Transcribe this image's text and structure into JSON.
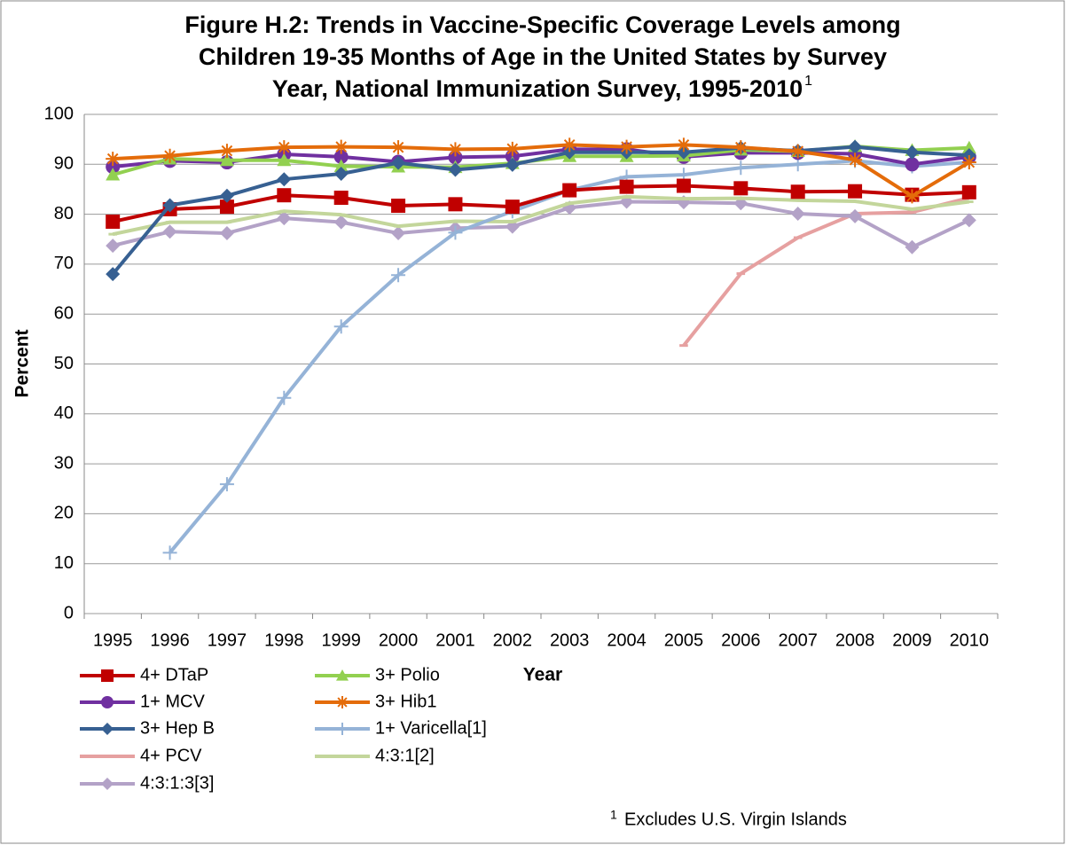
{
  "chart_data": {
    "type": "line",
    "title_lines": [
      "Figure H.2: Trends in Vaccine-Specific Coverage Levels among",
      "Children 19-35 Months of Age in the United States by Survey",
      "Year, National Immunization Survey, 1995-2010"
    ],
    "title_superscript": "1",
    "x_label": "Year",
    "y_label": "Percent",
    "footnote_marker": "1",
    "footnote": "Excludes U.S. Virgin Islands",
    "categories": [
      "1995",
      "1996",
      "1997",
      "1998",
      "1999",
      "2000",
      "2001",
      "2002",
      "2003",
      "2004",
      "2005",
      "2006",
      "2007",
      "2008",
      "2009",
      "2010"
    ],
    "ylim": [
      0,
      100
    ],
    "yticks": [
      0,
      10,
      20,
      30,
      40,
      50,
      60,
      70,
      80,
      90,
      100
    ],
    "grid": true,
    "series": [
      {
        "name": "4+ DTaP",
        "color": "#c00000",
        "marker": "square",
        "values": [
          78.5,
          81,
          81.5,
          83.8,
          83.3,
          81.7,
          82,
          81.5,
          84.8,
          85.5,
          85.7,
          85.2,
          84.5,
          84.6,
          83.9,
          84.4
        ]
      },
      {
        "name": "3+ Polio",
        "color": "#92d050",
        "marker": "triangle",
        "values": [
          87.9,
          91.1,
          90.8,
          90.8,
          89.6,
          89.5,
          89.4,
          90.2,
          91.6,
          91.6,
          91.7,
          92.9,
          92.6,
          93.6,
          92.8,
          93.3
        ]
      },
      {
        "name": "1+ MCV",
        "color": "#7030a0",
        "marker": "circle",
        "values": [
          89.5,
          90.7,
          90.4,
          92,
          91.5,
          90.5,
          91.4,
          91.6,
          93,
          93,
          91.5,
          92.3,
          92.3,
          92.1,
          90,
          91.5
        ]
      },
      {
        "name": "3+ Hib1",
        "color": "#e46c0a",
        "marker": "asterisk",
        "values": [
          91.1,
          91.7,
          92.7,
          93.4,
          93.5,
          93.4,
          93,
          93.1,
          93.9,
          93.5,
          93.9,
          93.4,
          92.6,
          90.9,
          83.6,
          90.4
        ]
      },
      {
        "name": "3+ Hep B",
        "color": "#376092",
        "marker": "diamond",
        "values": [
          68,
          81.8,
          83.7,
          87,
          88.1,
          90.3,
          88.9,
          89.9,
          92.4,
          92.4,
          92.4,
          93.3,
          92.7,
          93.5,
          92.4,
          91.8
        ]
      },
      {
        "name": "1+ Varicella[1]",
        "color": "#95b3d7",
        "marker": "plus",
        "values": [
          null,
          12.2,
          25.9,
          43.2,
          57.5,
          67.8,
          76.3,
          80.6,
          84.8,
          87.5,
          87.9,
          89.3,
          90,
          90.7,
          89.6,
          90.4
        ]
      },
      {
        "name": "4+ PCV",
        "color": "#e6a0a0",
        "marker": "dash",
        "values": [
          null,
          null,
          null,
          null,
          null,
          null,
          null,
          null,
          null,
          null,
          53.7,
          68.1,
          75.3,
          80.1,
          80.4,
          83.3
        ]
      },
      {
        "name": "4:3:1[2]",
        "color": "#c3d69b",
        "marker": "dash",
        "values": [
          76,
          78.4,
          78.4,
          80.6,
          79.9,
          77.6,
          78.6,
          78.5,
          82.2,
          83.5,
          83.1,
          83.2,
          82.8,
          82.6,
          81,
          82.5
        ]
      },
      {
        "name": "4:3:1:3[3]",
        "color": "#b3a2c7",
        "marker": "diamond",
        "values": [
          73.7,
          76.5,
          76.2,
          79.2,
          78.4,
          76.2,
          77.2,
          77.5,
          81.3,
          82.5,
          82.4,
          82.2,
          80.1,
          79.6,
          73.4,
          78.8
        ]
      }
    ]
  }
}
